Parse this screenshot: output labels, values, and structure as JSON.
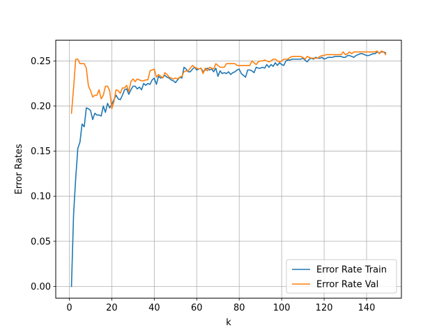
{
  "chart_data": {
    "type": "line",
    "title": "",
    "xlabel": "k",
    "ylabel": "Error Rates",
    "xlim": [
      -6.4,
      156.4
    ],
    "ylim": [
      -0.013,
      0.273
    ],
    "xticks": [
      0,
      20,
      40,
      60,
      80,
      100,
      120,
      140
    ],
    "xtick_labels": [
      "0",
      "20",
      "40",
      "60",
      "80",
      "100",
      "120",
      "140"
    ],
    "yticks": [
      0.0,
      0.05,
      0.1,
      0.15,
      0.2,
      0.25
    ],
    "ytick_labels": [
      "0.00",
      "0.05",
      "0.10",
      "0.15",
      "0.20",
      "0.25"
    ],
    "grid": true,
    "legend_position": "lower-right",
    "colors": {
      "train": "#1f77b4",
      "val": "#ff7f0e",
      "grid": "#b0b0b0"
    },
    "x": [
      1,
      2,
      3,
      4,
      5,
      6,
      7,
      8,
      9,
      10,
      11,
      12,
      13,
      14,
      15,
      16,
      17,
      18,
      19,
      20,
      21,
      22,
      23,
      24,
      25,
      26,
      27,
      28,
      29,
      30,
      31,
      32,
      33,
      34,
      35,
      36,
      37,
      38,
      39,
      40,
      41,
      42,
      43,
      44,
      45,
      46,
      47,
      48,
      49,
      50,
      51,
      52,
      53,
      54,
      55,
      56,
      57,
      58,
      59,
      60,
      61,
      62,
      63,
      64,
      65,
      66,
      67,
      68,
      69,
      70,
      71,
      72,
      73,
      74,
      75,
      76,
      77,
      78,
      79,
      80,
      81,
      82,
      83,
      84,
      85,
      86,
      87,
      88,
      89,
      90,
      91,
      92,
      93,
      94,
      95,
      96,
      97,
      98,
      99,
      100,
      101,
      102,
      103,
      104,
      105,
      106,
      107,
      108,
      109,
      110,
      111,
      112,
      113,
      114,
      115,
      116,
      117,
      118,
      119,
      120,
      121,
      122,
      123,
      124,
      125,
      126,
      127,
      128,
      129,
      130,
      131,
      132,
      133,
      134,
      135,
      136,
      137,
      138,
      139,
      140,
      141,
      142,
      143,
      144,
      145,
      146,
      147,
      148,
      149
    ],
    "series": [
      {
        "name": "Error Rate Train",
        "values": [
          0.0,
          0.08,
          0.12,
          0.153,
          0.16,
          0.18,
          0.177,
          0.198,
          0.197,
          0.195,
          0.185,
          0.192,
          0.19,
          0.19,
          0.189,
          0.2,
          0.193,
          0.203,
          0.198,
          0.202,
          0.207,
          0.212,
          0.208,
          0.207,
          0.212,
          0.218,
          0.219,
          0.213,
          0.218,
          0.222,
          0.222,
          0.219,
          0.221,
          0.218,
          0.225,
          0.223,
          0.225,
          0.224,
          0.229,
          0.231,
          0.224,
          0.233,
          0.231,
          0.232,
          0.234,
          0.232,
          0.231,
          0.229,
          0.228,
          0.226,
          0.229,
          0.232,
          0.231,
          0.243,
          0.241,
          0.238,
          0.238,
          0.241,
          0.243,
          0.24,
          0.241,
          0.242,
          0.238,
          0.24,
          0.242,
          0.24,
          0.241,
          0.238,
          0.242,
          0.233,
          0.239,
          0.236,
          0.237,
          0.236,
          0.238,
          0.235,
          0.237,
          0.238,
          0.24,
          0.241,
          0.236,
          0.234,
          0.232,
          0.24,
          0.24,
          0.239,
          0.237,
          0.243,
          0.242,
          0.242,
          0.243,
          0.242,
          0.246,
          0.243,
          0.246,
          0.244,
          0.248,
          0.245,
          0.248,
          0.246,
          0.245,
          0.25,
          0.251,
          0.251,
          0.252,
          0.252,
          0.252,
          0.252,
          0.252,
          0.253,
          0.251,
          0.249,
          0.252,
          0.253,
          0.252,
          0.254,
          0.253,
          0.253,
          0.254,
          0.252,
          0.253,
          0.254,
          0.254,
          0.254,
          0.255,
          0.255,
          0.255,
          0.255,
          0.254,
          0.254,
          0.256,
          0.256,
          0.255,
          0.254,
          0.256,
          0.257,
          0.258,
          0.258,
          0.257,
          0.256,
          0.256,
          0.257,
          0.258,
          0.258,
          0.26,
          0.259,
          0.26,
          0.26,
          0.259
        ],
        "color": "#1f77b4"
      },
      {
        "name": "Error Rate Val",
        "values": [
          0.192,
          0.22,
          0.252,
          0.252,
          0.247,
          0.247,
          0.247,
          0.242,
          0.222,
          0.217,
          0.21,
          0.212,
          0.212,
          0.218,
          0.208,
          0.212,
          0.222,
          0.222,
          0.217,
          0.197,
          0.205,
          0.218,
          0.217,
          0.214,
          0.22,
          0.22,
          0.223,
          0.216,
          0.227,
          0.23,
          0.227,
          0.23,
          0.229,
          0.228,
          0.228,
          0.229,
          0.229,
          0.239,
          0.24,
          0.241,
          0.232,
          0.235,
          0.233,
          0.231,
          0.237,
          0.235,
          0.232,
          0.231,
          0.23,
          0.231,
          0.23,
          0.232,
          0.233,
          0.238,
          0.239,
          0.239,
          0.242,
          0.245,
          0.243,
          0.242,
          0.241,
          0.242,
          0.236,
          0.242,
          0.239,
          0.243,
          0.242,
          0.241,
          0.247,
          0.245,
          0.243,
          0.243,
          0.243,
          0.247,
          0.247,
          0.247,
          0.247,
          0.247,
          0.245,
          0.245,
          0.245,
          0.245,
          0.245,
          0.245,
          0.245,
          0.25,
          0.248,
          0.246,
          0.249,
          0.25,
          0.25,
          0.251,
          0.25,
          0.249,
          0.25,
          0.252,
          0.252,
          0.25,
          0.249,
          0.25,
          0.252,
          0.252,
          0.252,
          0.254,
          0.255,
          0.255,
          0.255,
          0.255,
          0.255,
          0.254,
          0.252,
          0.255,
          0.254,
          0.253,
          0.253,
          0.253,
          0.253,
          0.255,
          0.256,
          0.256,
          0.257,
          0.257,
          0.257,
          0.257,
          0.257,
          0.257,
          0.257,
          0.257,
          0.26,
          0.257,
          0.258,
          0.26,
          0.258,
          0.26,
          0.26,
          0.26,
          0.26,
          0.26,
          0.26,
          0.26,
          0.26,
          0.26,
          0.26,
          0.26,
          0.261,
          0.258,
          0.261,
          0.26,
          0.257
        ],
        "color": "#ff7f0e"
      }
    ]
  }
}
